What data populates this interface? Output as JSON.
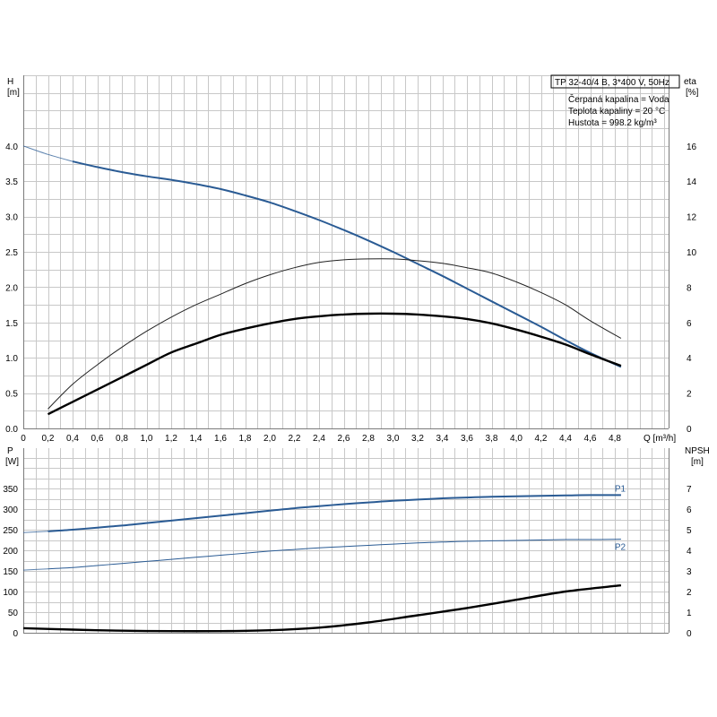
{
  "info": {
    "title": "TP 32-40/4 B, 3*400 V, 50Hz",
    "lines": [
      "Čerpaná kapalina = Voda",
      "Teplota kapaliny = 20 °C",
      "Hustota = 998.2 kg/m³"
    ]
  },
  "axes": {
    "top_left_label": "H",
    "top_left_unit": "[m]",
    "top_right_label": "eta",
    "top_right_unit": "[%]",
    "x_label": "Q [m³/h]",
    "bottom_left_label": "P",
    "bottom_left_unit": "[W]",
    "bottom_right_label": "NPSH",
    "bottom_right_unit": "[m]"
  },
  "colors": {
    "blue": "#2a5b94",
    "thin_black": "#222222",
    "black": "#000000",
    "grid": "#c8c8c8"
  },
  "chart_data": [
    {
      "type": "line",
      "panel": "head-efficiency",
      "xlim": [
        0,
        5.0
      ],
      "xticks": [
        "0",
        "0,2",
        "0,4",
        "0,6",
        "0,8",
        "1,0",
        "1,2",
        "1,4",
        "1,6",
        "1,8",
        "2,0",
        "2,2",
        "2,4",
        "2,6",
        "2,8",
        "3,0",
        "3,2",
        "3,4",
        "3,6",
        "3,8",
        "4,0",
        "4,2",
        "4,4",
        "4,6",
        "4,8"
      ],
      "ylim_left": [
        0,
        4.0
      ],
      "yticks_left": [
        "0.0",
        "0.5",
        "1.0",
        "1.5",
        "2.0",
        "2.5",
        "3.0",
        "3.5",
        "4.0"
      ],
      "ylim_right": [
        0,
        16
      ],
      "yticks_right": [
        "0",
        "2",
        "4",
        "6",
        "8",
        "10",
        "12",
        "14",
        "16"
      ],
      "grid": true,
      "series": [
        {
          "color": "blue",
          "axis": "left",
          "width": 2,
          "x_start": 0.4,
          "x": [
            0,
            0.2,
            0.4,
            0.6,
            0.8,
            1.0,
            1.2,
            1.4,
            1.6,
            1.8,
            2.0,
            2.2,
            2.4,
            2.6,
            2.8,
            3.0,
            3.2,
            3.4,
            3.6,
            3.8,
            4.0,
            4.2,
            4.4,
            4.6,
            4.85
          ],
          "y": [
            4.0,
            3.88,
            3.78,
            3.7,
            3.63,
            3.57,
            3.52,
            3.46,
            3.39,
            3.3,
            3.2,
            3.08,
            2.95,
            2.81,
            2.66,
            2.5,
            2.33,
            2.16,
            1.98,
            1.8,
            1.62,
            1.44,
            1.25,
            1.07,
            0.87
          ]
        },
        {
          "color": "thin_black",
          "axis": "right",
          "width": 1,
          "x": [
            0.2,
            0.4,
            0.6,
            0.8,
            1.0,
            1.2,
            1.4,
            1.6,
            1.8,
            2.0,
            2.2,
            2.4,
            2.6,
            2.8,
            3.0,
            3.2,
            3.4,
            3.6,
            3.8,
            4.0,
            4.2,
            4.4,
            4.6,
            4.85
          ],
          "y": [
            1.1,
            2.5,
            3.6,
            4.6,
            5.5,
            6.3,
            7.0,
            7.6,
            8.2,
            8.7,
            9.1,
            9.4,
            9.55,
            9.6,
            9.6,
            9.5,
            9.35,
            9.1,
            8.8,
            8.3,
            7.7,
            7.0,
            6.1,
            5.1
          ]
        },
        {
          "color": "black",
          "axis": "right",
          "width": 2.4,
          "x": [
            0.2,
            0.4,
            0.6,
            0.8,
            1.0,
            1.2,
            1.4,
            1.6,
            1.8,
            2.0,
            2.2,
            2.4,
            2.6,
            2.8,
            3.0,
            3.2,
            3.4,
            3.6,
            3.8,
            4.0,
            4.2,
            4.4,
            4.6,
            4.85
          ],
          "y": [
            0.8,
            1.5,
            2.2,
            2.9,
            3.6,
            4.3,
            4.8,
            5.3,
            5.65,
            5.95,
            6.2,
            6.35,
            6.45,
            6.5,
            6.5,
            6.45,
            6.35,
            6.2,
            5.95,
            5.6,
            5.2,
            4.75,
            4.2,
            3.55
          ]
        }
      ]
    },
    {
      "type": "line",
      "panel": "power-npsh",
      "xlim": [
        0,
        5.0
      ],
      "ylim_left": [
        0,
        350
      ],
      "yticks_left": [
        "0",
        "50",
        "100",
        "150",
        "200",
        "250",
        "300",
        "350"
      ],
      "ylim_right": [
        0,
        7
      ],
      "yticks_right": [
        "0",
        "1",
        "2",
        "3",
        "4",
        "5",
        "6",
        "7"
      ],
      "grid": true,
      "series": [
        {
          "name": "P1",
          "color": "blue",
          "axis": "left",
          "width": 2,
          "x_start": 0.2,
          "x": [
            0,
            0.2,
            0.4,
            0.6,
            0.8,
            1.0,
            1.2,
            1.4,
            1.6,
            1.8,
            2.0,
            2.2,
            2.4,
            2.6,
            2.8,
            3.0,
            3.2,
            3.4,
            3.6,
            3.8,
            4.0,
            4.2,
            4.4,
            4.6,
            4.85
          ],
          "y": [
            243,
            246,
            250,
            255,
            260,
            266,
            272,
            278,
            284,
            290,
            296,
            302,
            307,
            312,
            316,
            320,
            323,
            326,
            328,
            330,
            331,
            332,
            333,
            334,
            334
          ]
        },
        {
          "name": "P2",
          "color": "blue",
          "axis": "left",
          "width": 1,
          "x_start": 0.2,
          "x": [
            0,
            0.2,
            0.4,
            0.6,
            0.8,
            1.0,
            1.2,
            1.4,
            1.6,
            1.8,
            2.0,
            2.2,
            2.4,
            2.6,
            2.8,
            3.0,
            3.2,
            3.4,
            3.6,
            3.8,
            4.0,
            4.2,
            4.4,
            4.6,
            4.85
          ],
          "y": [
            152,
            155,
            158,
            163,
            168,
            173,
            178,
            183,
            188,
            193,
            198,
            202,
            206,
            209,
            212,
            215,
            218,
            220,
            222,
            223,
            224,
            225,
            226,
            226,
            227
          ]
        },
        {
          "color": "black",
          "axis": "right",
          "width": 2.4,
          "x": [
            0,
            0.4,
            0.8,
            1.2,
            1.6,
            2.0,
            2.4,
            2.8,
            3.2,
            3.6,
            4.0,
            4.4,
            4.85
          ],
          "y": [
            0.22,
            0.15,
            0.1,
            0.08,
            0.08,
            0.12,
            0.25,
            0.5,
            0.85,
            1.2,
            1.6,
            2.0,
            2.3
          ]
        }
      ]
    }
  ]
}
